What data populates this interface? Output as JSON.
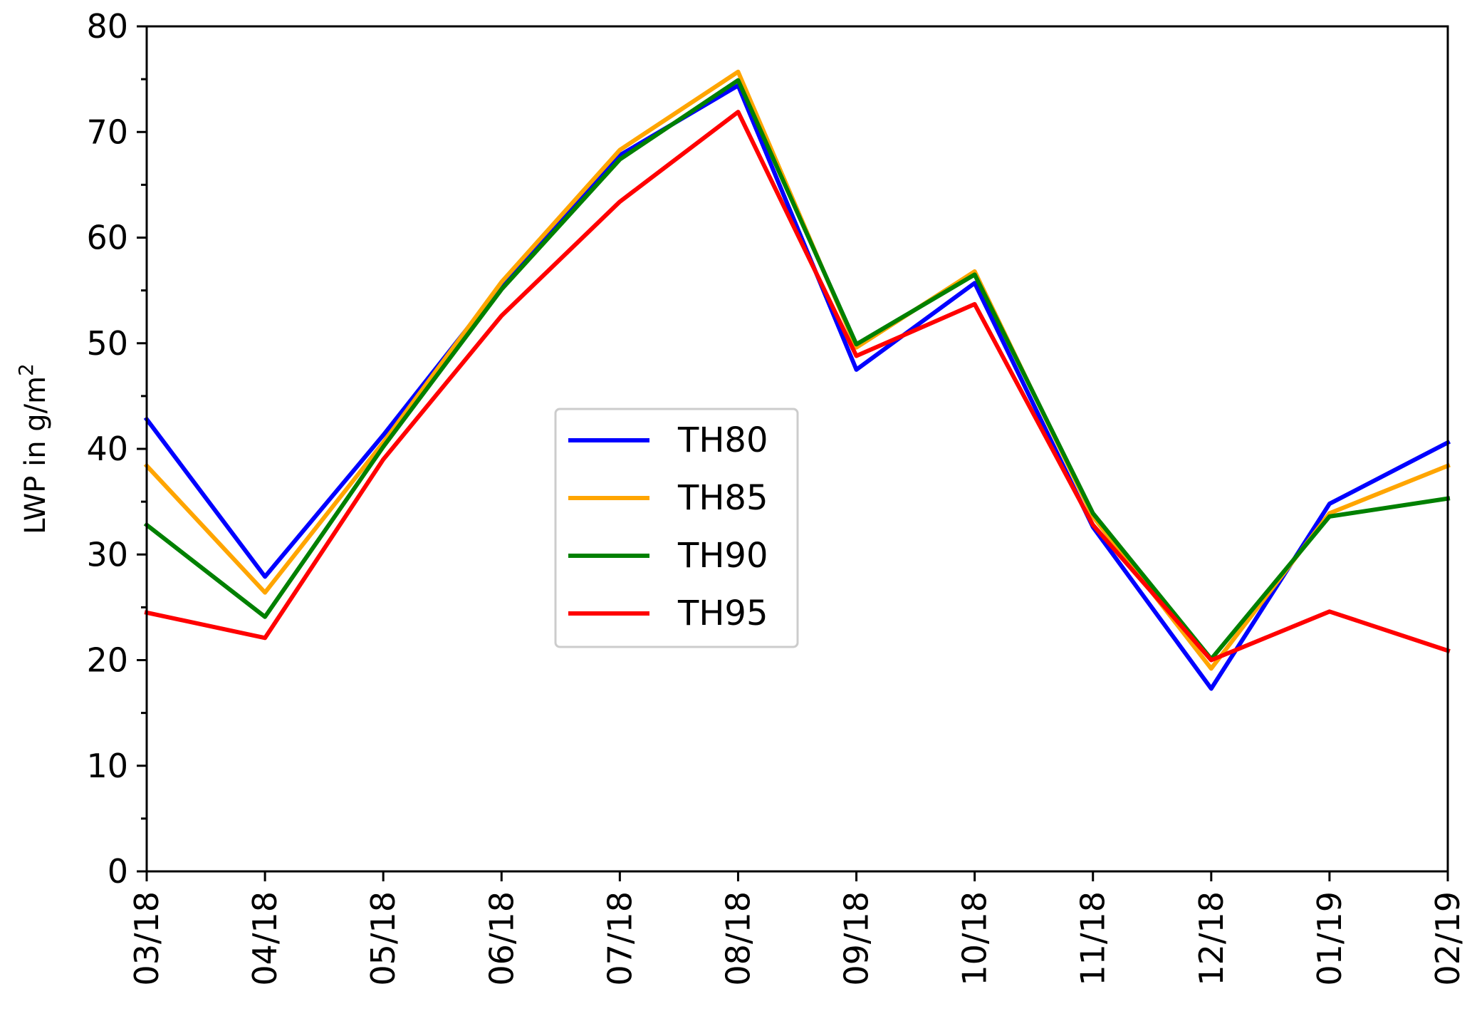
{
  "chart_data": {
    "type": "line",
    "title": "",
    "xlabel": "",
    "ylabel": "LWP in g/m",
    "ylabel_superscript": "2",
    "categories": [
      "03/18",
      "04/18",
      "05/18",
      "06/18",
      "07/18",
      "08/18",
      "09/18",
      "10/18",
      "11/18",
      "12/18",
      "01/19",
      "02/19"
    ],
    "ylim": [
      0,
      80
    ],
    "yticks": [
      "0",
      "10",
      "20",
      "30",
      "40",
      "50",
      "60",
      "70",
      "80"
    ],
    "grid": false,
    "legend_position": "center",
    "series": [
      {
        "name": "TH80",
        "color": "#0000ff",
        "values": [
          42.8,
          27.9,
          41.3,
          55.5,
          67.8,
          74.4,
          47.5,
          55.7,
          32.6,
          17.3,
          34.8,
          40.6
        ]
      },
      {
        "name": "TH85",
        "color": "#ffa500",
        "values": [
          38.4,
          26.4,
          40.6,
          55.8,
          68.3,
          75.7,
          49.6,
          56.8,
          33.6,
          19.2,
          33.9,
          38.4
        ]
      },
      {
        "name": "TH90",
        "color": "#008000",
        "values": [
          32.8,
          24.1,
          40.2,
          55.1,
          67.4,
          74.9,
          49.9,
          56.5,
          33.9,
          20.1,
          33.6,
          35.3
        ]
      },
      {
        "name": "TH95",
        "color": "#ff0000",
        "values": [
          24.5,
          22.1,
          39.0,
          52.6,
          63.4,
          71.9,
          48.8,
          53.7,
          32.8,
          20.0,
          24.6,
          20.9
        ]
      }
    ]
  }
}
